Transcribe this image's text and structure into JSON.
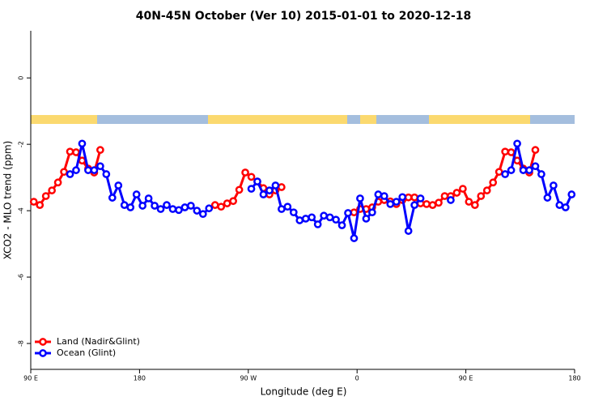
{
  "chart_data": {
    "type": "line",
    "title": "40N-45N October (Ver 10)   2015-01-01 to 2020-12-18",
    "x_label": "Longitude (deg E)",
    "y_label": "XCO2 - MLO trend (ppm)",
    "x": [
      92.5,
      97.5,
      102.5,
      107.5,
      112.5,
      117.5,
      122.5,
      127.5,
      132.5,
      137.5,
      142.5,
      147.5,
      152.5,
      157.5,
      162.5,
      167.5,
      172.5,
      177.5,
      182.5,
      187.5,
      192.5,
      197.5,
      202.5,
      207.5,
      212.5,
      217.5,
      222.5,
      227.5,
      232.5,
      237.5,
      242.5,
      247.5,
      252.5,
      257.5,
      262.5,
      267.5,
      272.5,
      277.5,
      282.5,
      287.5,
      292.5,
      297.5,
      302.5,
      307.5,
      312.5,
      317.5,
      322.5,
      327.5,
      332.5,
      337.5,
      342.5,
      347.5,
      352.5,
      357.5,
      362.5,
      367.5,
      372.5,
      377.5,
      382.5,
      387.5,
      392.5,
      397.5,
      402.5,
      407.5,
      412.5,
      417.5,
      422.5,
      427.5,
      432.5,
      437.5,
      442.5,
      447.5,
      452.5,
      457.5,
      462.5,
      467.5,
      472.5,
      477.5,
      482.5,
      487.5,
      492.5,
      497.5,
      502.5,
      507.5,
      512.5,
      517.5,
      522.5,
      527.5,
      532.5,
      537.5
    ],
    "series": [
      {
        "name": "Land (Nadir&Glint)",
        "color": "#ff0000",
        "values": [
          -3.73,
          -3.83,
          -3.56,
          -3.39,
          -3.15,
          -2.83,
          -2.22,
          -2.24,
          -2.49,
          -2.73,
          -2.85,
          -2.17,
          null,
          null,
          null,
          null,
          null,
          null,
          null,
          null,
          null,
          null,
          null,
          null,
          null,
          null,
          null,
          null,
          null,
          null,
          -3.83,
          -3.88,
          -3.78,
          -3.71,
          -3.37,
          -2.85,
          -2.98,
          -3.12,
          -3.32,
          -3.51,
          -3.39,
          -3.29,
          null,
          null,
          null,
          null,
          null,
          null,
          null,
          null,
          null,
          null,
          null,
          -4.05,
          -3.95,
          -3.95,
          -3.9,
          -3.73,
          -3.68,
          -3.72,
          -3.8,
          -3.68,
          -3.6,
          -3.6,
          -3.78,
          -3.8,
          -3.83,
          -3.76,
          -3.56,
          -3.56,
          -3.46,
          -3.34,
          -3.73,
          -3.83,
          -3.56,
          -3.39,
          -3.15,
          -2.83,
          -2.22,
          -2.24,
          -2.49,
          -2.73,
          -2.85,
          -2.17,
          null,
          null,
          null,
          null,
          null,
          null
        ]
      },
      {
        "name": "Ocean (Glint)",
        "color": "#0000ff",
        "values": [
          null,
          null,
          null,
          null,
          null,
          null,
          -2.9,
          -2.78,
          -1.98,
          -2.78,
          -2.78,
          -2.66,
          -2.9,
          -3.61,
          -3.24,
          -3.83,
          -3.9,
          -3.51,
          -3.85,
          -3.63,
          -3.85,
          -3.95,
          -3.83,
          -3.95,
          -3.98,
          -3.9,
          -3.85,
          -4.0,
          -4.1,
          -3.93,
          null,
          null,
          null,
          null,
          null,
          null,
          -3.34,
          -3.12,
          -3.51,
          -3.39,
          -3.24,
          -3.95,
          -3.88,
          -4.05,
          -4.29,
          -4.24,
          -4.2,
          -4.41,
          -4.15,
          -4.2,
          -4.27,
          -4.44,
          -4.07,
          -4.83,
          -3.63,
          -4.24,
          -4.05,
          -3.51,
          -3.56,
          -3.8,
          -3.73,
          -3.59,
          -4.61,
          -3.83,
          -3.63,
          null,
          null,
          null,
          null,
          -3.68,
          null,
          null,
          null,
          null,
          null,
          null,
          null,
          null,
          -2.9,
          -2.78,
          -1.98,
          -2.78,
          -2.78,
          -2.66,
          -2.9,
          -3.61,
          -3.24,
          -3.83,
          -3.9,
          -3.51
        ]
      }
    ],
    "xlim": [
      90,
      540
    ],
    "xticks": [
      {
        "value": 90,
        "label": "90 E"
      },
      180,
      {
        "value": 270,
        "label": "90 W"
      },
      {
        "value": 360,
        "label": "0"
      },
      {
        "value": 450,
        "label": "90 E"
      },
      {
        "value": 540,
        "label": "180"
      }
    ],
    "ylim": [
      -8.78,
      1.42
    ],
    "yticks": [
      0,
      -2,
      -4,
      -6,
      -8
    ],
    "legend": "bottomleft"
  }
}
